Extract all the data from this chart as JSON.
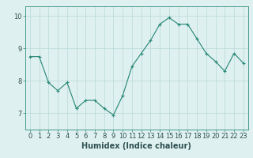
{
  "xlabel": "Humidex (Indice chaleur)",
  "ylabel": "",
  "x": [
    0,
    1,
    2,
    3,
    4,
    5,
    6,
    7,
    8,
    9,
    10,
    11,
    12,
    13,
    14,
    15,
    16,
    17,
    18,
    19,
    20,
    21,
    22,
    23
  ],
  "y": [
    8.75,
    8.75,
    7.95,
    7.7,
    7.95,
    7.15,
    7.4,
    7.4,
    7.15,
    6.95,
    7.55,
    8.45,
    8.85,
    9.25,
    9.75,
    9.95,
    9.75,
    9.75,
    9.3,
    8.85,
    8.6,
    8.3,
    8.85,
    8.55
  ],
  "line_color": "#2e8b7a",
  "marker": "+",
  "marker_size": 3,
  "bg_color": "#dff0f0",
  "grid_color": "#b8d8d8",
  "ylim": [
    6.5,
    10.3
  ],
  "yticks": [
    7,
    8,
    9,
    10
  ],
  "tick_fontsize": 6,
  "xlabel_fontsize": 7
}
